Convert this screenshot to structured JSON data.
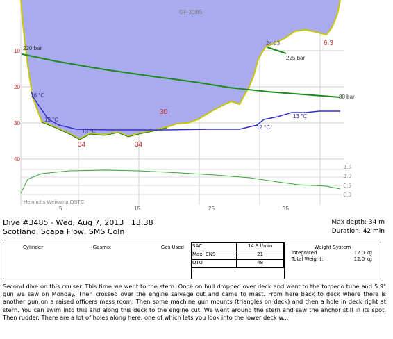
{
  "profile": {
    "gf_label": "GF 30/85",
    "depth_labels": [
      "10",
      "20",
      "30",
      "40"
    ],
    "time_labels": [
      "5",
      "15",
      "25",
      "35"
    ],
    "pressure_labels": {
      "start": "220 bar",
      "mid": "225 bar",
      "end": "80 bar"
    },
    "temp_labels": [
      "16 °C",
      "13 °C",
      "13 °C",
      "12 °C",
      "13 °C"
    ],
    "marker_depths": [
      "34",
      "34",
      "30",
      "24.03",
      "6.3"
    ],
    "po2_scale": [
      "1.5",
      "1.0",
      "0.5",
      "0.0"
    ],
    "gas_label": "Heinrichs Weikamp OSTC",
    "colors": {
      "depth_line": "#c8c800",
      "depth_fill": "#aaaaee",
      "pressure": "#1c8a1c",
      "temperature": "#3333cc",
      "deco_ceiling": "#ffb6c1",
      "po2": "#33aa33"
    }
  },
  "dive": {
    "title": "Dive #3485 - Wed, Aug 7, 2013   13:38",
    "location": "Scotland, Scapa Flow, SMS Coln",
    "max_depth": "Max depth: 34 m",
    "duration": "Duration: 42 min"
  },
  "cylinders": {
    "col1": "Cylinder",
    "col2": "Gasmix",
    "col3": "Gas Used"
  },
  "stats": [
    {
      "label": "SAC",
      "value": "14.9 l/min"
    },
    {
      "label": "Max. CNS",
      "value": "21"
    },
    {
      "label": "OTU",
      "value": "48"
    }
  ],
  "weight": {
    "title": "Weight System",
    "rows": [
      {
        "label": "integrated",
        "value": "12.0 kg"
      },
      {
        "label": "Total Weight:",
        "value": "12.0 kg"
      }
    ]
  },
  "notes": "Second dive on this cruiser. This time we went to the stern. Once on hull dropped over deck and went to the torpedo tube and 5.9\" gun we saw on Monday. Then crossed over the engine salvage cut and came to mast. From here back to deck where there is another gun on a raised officers mess room. Then some machine gun mounts (triangles on deck) and then a hole in deck right at stern. You can swim into this and along this deck to the engine cut. We went around the stern and saw the anchor still in its spot. Then rudder. There are a lot of holes along here, one of which lets you look into the lower deck w..."
}
